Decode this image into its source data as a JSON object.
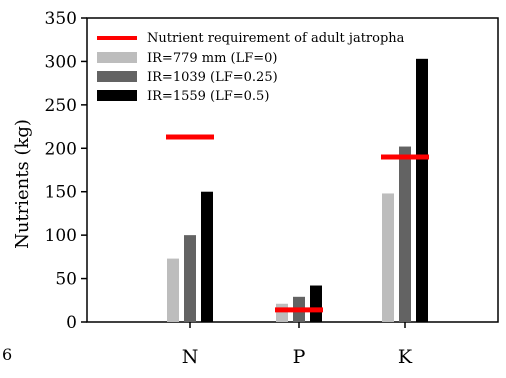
{
  "chart_data": {
    "type": "bar",
    "title": "",
    "xlabel": "",
    "ylabel": "Nutrients (kg)",
    "ylim": [
      0,
      350
    ],
    "yticks": [
      0,
      50,
      100,
      150,
      200,
      250,
      300,
      350
    ],
    "categories": [
      "N",
      "P",
      "K"
    ],
    "series": [
      {
        "name": "IR=779 mm (LF=0)",
        "values": [
          73,
          21,
          148
        ],
        "color": "#bdbdbd"
      },
      {
        "name": "IR=1039 (LF=0.25)",
        "values": [
          100,
          29,
          202
        ],
        "color": "#636363"
      },
      {
        "name": "IR=1559 (LF=0.5)",
        "values": [
          150,
          42,
          303
        ],
        "color": "#000000"
      }
    ],
    "requirement": {
      "name": "Nutrient requirement of adult jatropha",
      "values": [
        213,
        14,
        190
      ],
      "color": "#ff0000"
    },
    "legend_position": "top-left",
    "grid": false
  },
  "corner_label": "6"
}
